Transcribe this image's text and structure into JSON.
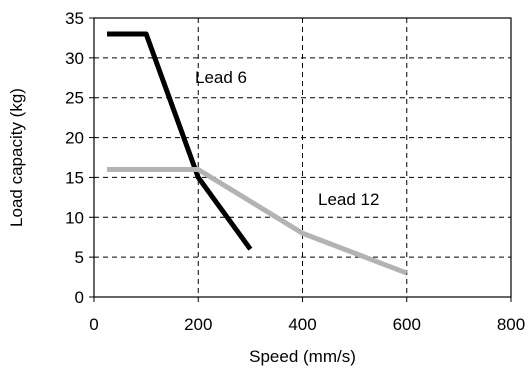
{
  "chart_data": {
    "type": "line",
    "xlabel": "Speed (mm/s)",
    "ylabel": "Load capacity (kg)",
    "xlim": [
      0,
      800
    ],
    "ylim": [
      0,
      35
    ],
    "xticks": [
      "0",
      "200",
      "400",
      "600",
      "800"
    ],
    "yticks": [
      "0",
      "5",
      "10",
      "15",
      "20",
      "25",
      "30",
      "35"
    ],
    "grid": true,
    "series": [
      {
        "name": "Lead 6",
        "color": "#000000",
        "points": [
          [
            25,
            33
          ],
          [
            100,
            33
          ],
          [
            200,
            15
          ],
          [
            300,
            6
          ]
        ]
      },
      {
        "name": "Lead 12",
        "color": "#b3b3b3",
        "points": [
          [
            25,
            16
          ],
          [
            200,
            16
          ],
          [
            400,
            8
          ],
          [
            600,
            3
          ]
        ]
      }
    ]
  }
}
